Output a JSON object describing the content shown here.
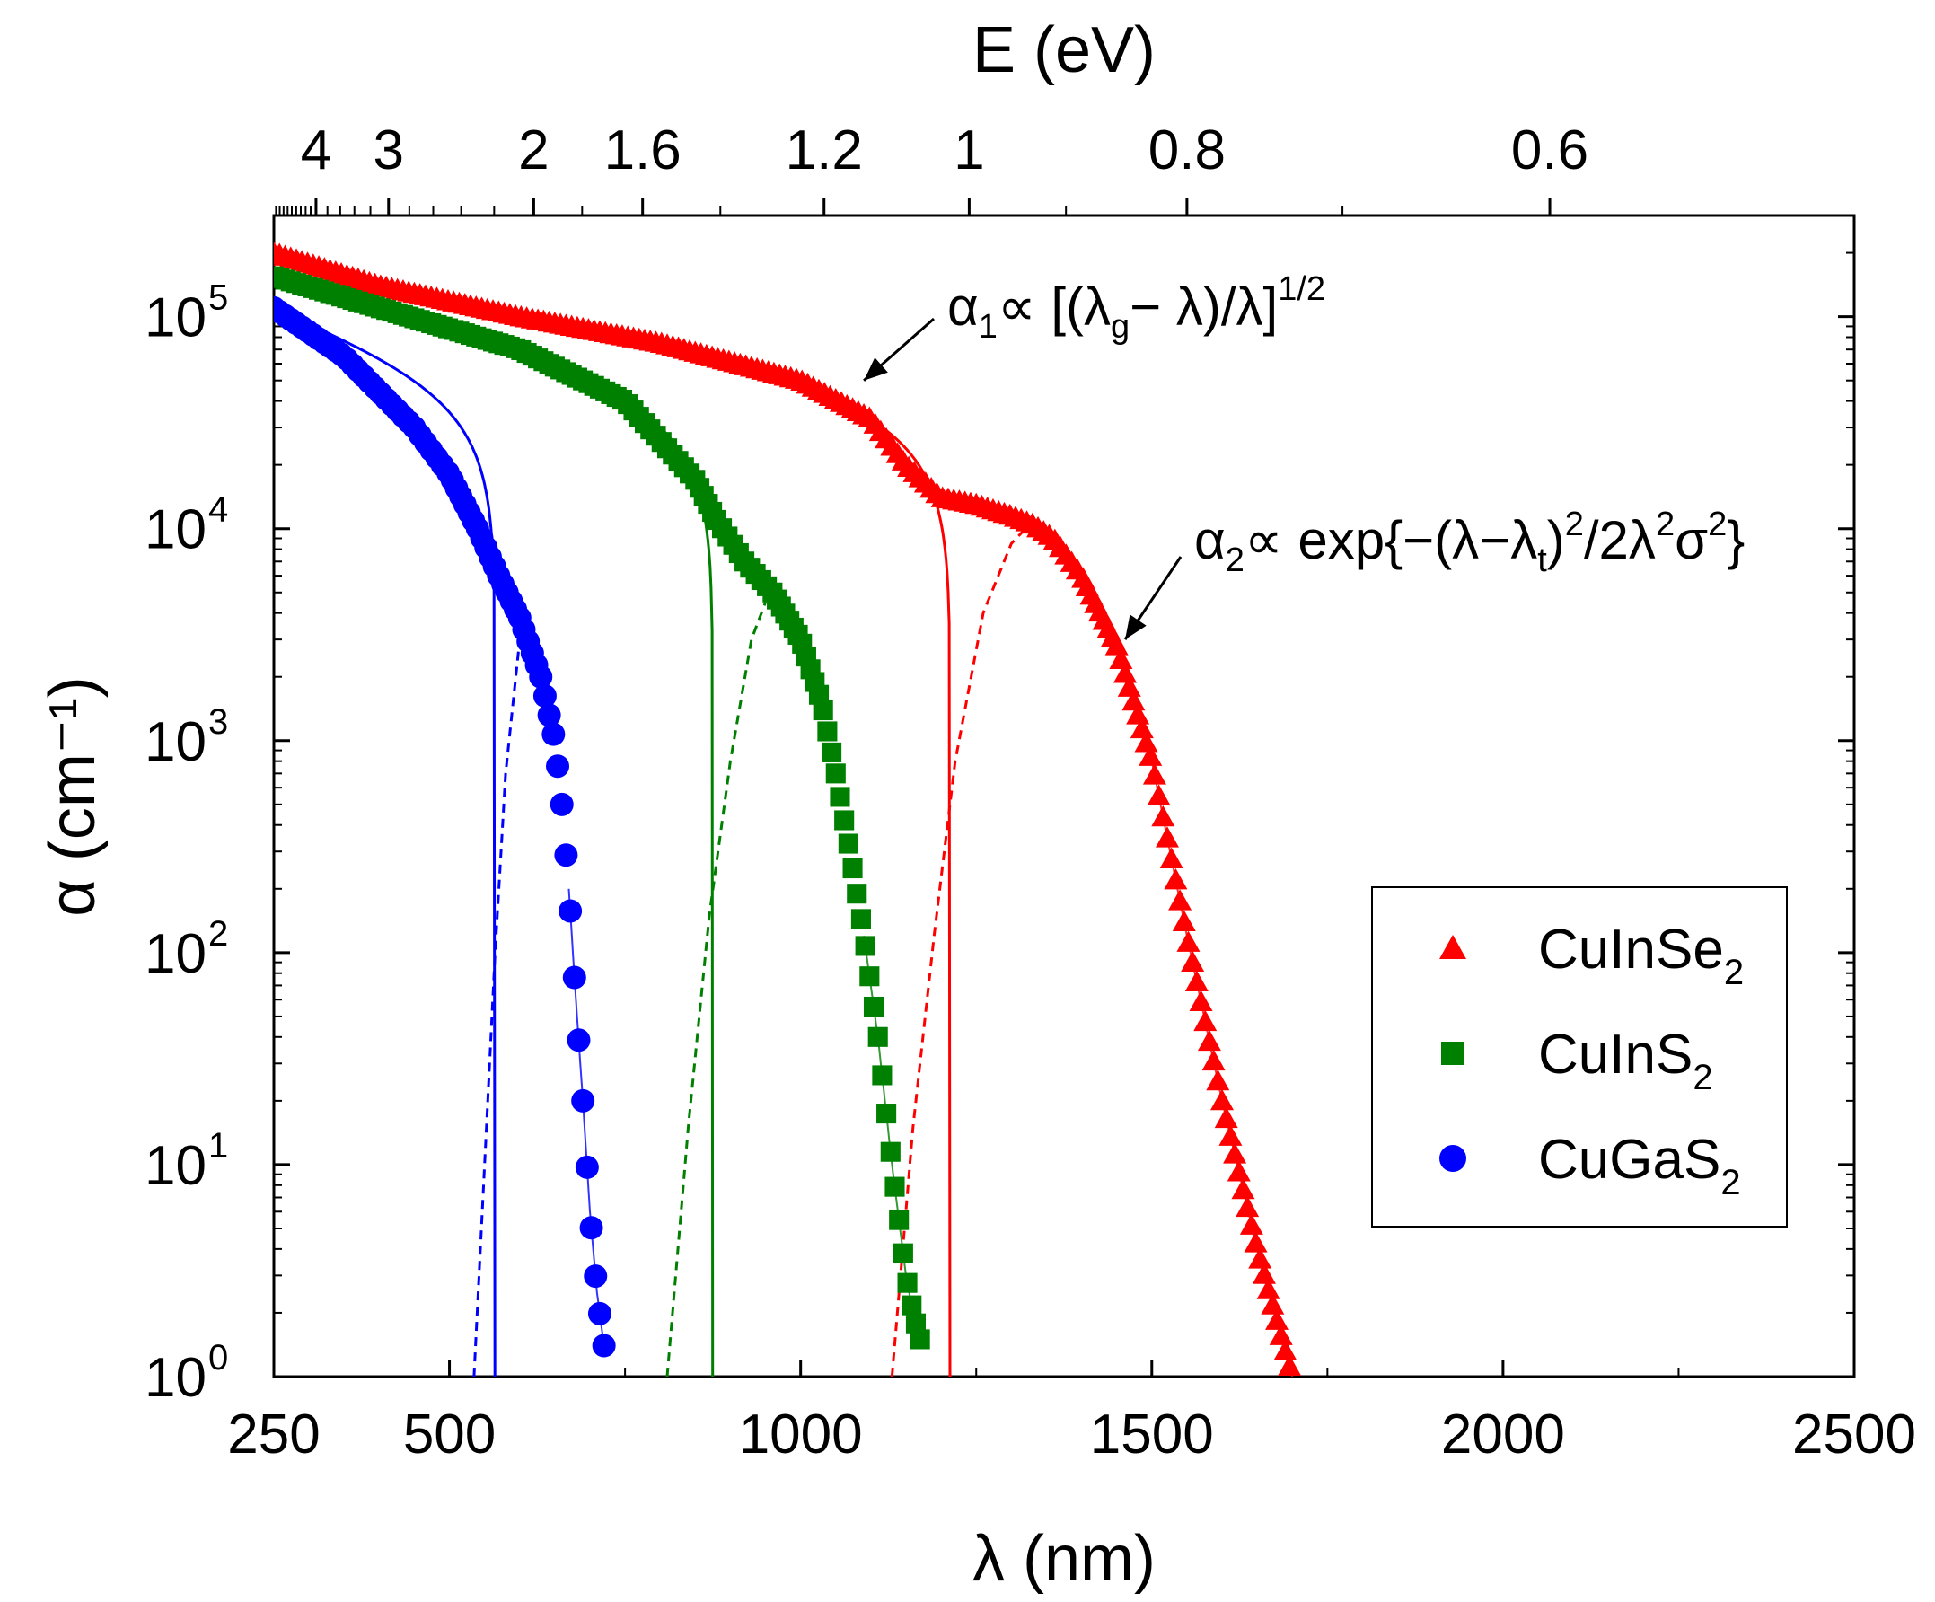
{
  "chart_data": {
    "type": "scatter",
    "y_scale": "log",
    "xlabel": "λ (nm)",
    "top_xlabel": "E (eV)",
    "ylabel": "α (cm⁻¹)",
    "xlim": [
      250,
      2500
    ],
    "ylim": [
      1,
      300000
    ],
    "x_ticks": [
      250,
      500,
      1000,
      1500,
      2000,
      2500
    ],
    "x_tick_labels": [
      "250",
      "500",
      "1000",
      "1500",
      "2000",
      "2500"
    ],
    "top_ticks_eV": [
      4,
      3,
      2,
      1.6,
      1.2,
      1,
      0.8,
      0.6
    ],
    "top_tick_labels": [
      "4",
      "3",
      "2",
      "1.6",
      "1.2",
      "1",
      "0.8",
      "0.6"
    ],
    "y_tick_labels": [
      {
        "value": 1,
        "base": "10",
        "exp": "0"
      },
      {
        "value": 10,
        "base": "10",
        "exp": "1"
      },
      {
        "value": 100,
        "base": "10",
        "exp": "2"
      },
      {
        "value": 1000,
        "base": "10",
        "exp": "3"
      },
      {
        "value": 10000,
        "base": "10",
        "exp": "4"
      },
      {
        "value": 100000,
        "base": "10",
        "exp": "5"
      }
    ],
    "annotations": [
      {
        "lead": "α",
        "sub1": "1",
        "mid": "∝ [(λ",
        "sub2": "g",
        "tail": "− λ)/λ]",
        "sup": "1/2",
        "arrow_to": [
          1090,
          50000
        ]
      },
      {
        "lead": "α",
        "sub1": "2",
        "mid": "∝ exp{−(λ−λ",
        "sub2": "t",
        "tail": ")",
        "sup2": "2",
        "tail2": "/2λ",
        "sup3": "2",
        "tail3": "σ",
        "sup4": "2",
        "end": "}",
        "arrow_to": [
          1462,
          3000
        ]
      }
    ],
    "series": [
      {
        "name": "CuInSe2",
        "label_base": "CuInSe",
        "label_sub": "2",
        "color": "#ff0000",
        "marker": "triangle",
        "x": [
          250,
          400,
          600,
          800,
          1000,
          1100,
          1150,
          1200,
          1250,
          1300,
          1330,
          1360,
          1400,
          1450,
          1500,
          1550,
          1600,
          1650,
          1700
        ],
        "y": [
          200000,
          140000,
          100000,
          75000,
          50000,
          33000,
          20000,
          14000,
          13000,
          11500,
          10500,
          9000,
          6000,
          2800,
          800,
          120,
          20,
          4,
          1
        ],
        "fit_direct": {
          "lambda_g": 1213
        },
        "fit_tail": {
          "x": [
            1130,
            1160,
            1190,
            1220,
            1260,
            1300,
            1320
          ],
          "y": [
            1,
            15,
            120,
            800,
            4000,
            8500,
            10000
          ]
        }
      },
      {
        "name": "CuInS2",
        "label_base": "CuInS",
        "label_sub": "2",
        "color": "#008000",
        "marker": "square",
        "x": [
          250,
          400,
          600,
          750,
          850,
          880,
          920,
          960,
          1000,
          1030,
          1050,
          1070,
          1090,
          1110,
          1130,
          1150,
          1160,
          1170
        ],
        "y": [
          155000,
          110000,
          70000,
          40000,
          17000,
          11000,
          7000,
          5000,
          3000,
          1500,
          700,
          300,
          120,
          40,
          10,
          3,
          2,
          1.5
        ],
        "fit_direct": {
          "lambda_g": 875
        },
        "fit_tail": {
          "x": [
            810,
            840,
            870,
            900,
            930,
            950
          ],
          "y": [
            1,
            15,
            150,
            800,
            3000,
            4500
          ]
        }
      },
      {
        "name": "CuGaS2",
        "label_base": "CuGaS",
        "label_sub": "2",
        "color": "#0000ff",
        "marker": "circle",
        "x": [
          250,
          350,
          450,
          500,
          540,
          570,
          600,
          630,
          650,
          660,
          670,
          680,
          690,
          700,
          710,
          720
        ],
        "y": [
          110000,
          65000,
          30000,
          18000,
          10000,
          6000,
          3800,
          2000,
          1000,
          500,
          200,
          60,
          20,
          6,
          2.5,
          1.4
        ],
        "fit_direct": {
          "lambda_g": 565
        },
        "fit_tail": {
          "x": [
            535,
            550,
            565,
            580,
            600,
            610
          ],
          "y": [
            1,
            10,
            100,
            700,
            3000,
            4000
          ]
        }
      }
    ],
    "legend": {
      "placement": "bottom-right"
    }
  }
}
